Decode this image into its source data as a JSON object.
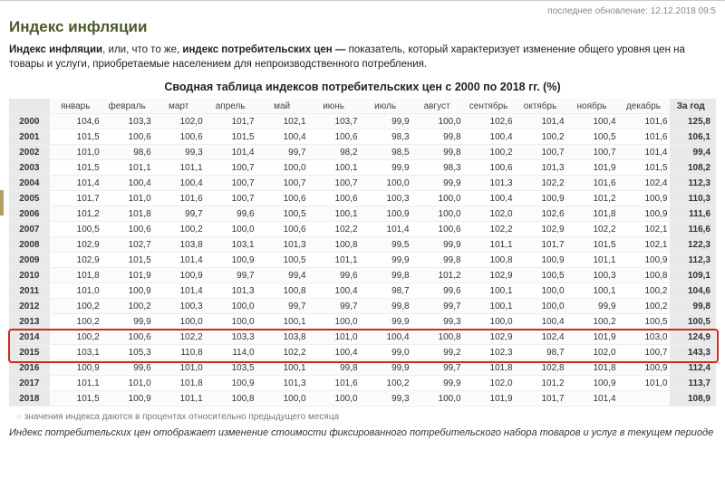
{
  "updated_prefix": "последнее обновление:",
  "updated": "12.12.2018 09:5",
  "title": "Индекс инфляции",
  "lead_a": "Индекс инфляции",
  "lead_b": ", или, что то же, ",
  "lead_c": "индекс потребительских цен —",
  "lead_d": " показатель, который характеризует изменение общего уровня цен на товары и услуги, приобретаемые населением для непроизводственного потребления.",
  "table_title": "Сводная таблица индексов потребительских цен с 2000 по 2018 гг. (%)",
  "months": [
    "январь",
    "февраль",
    "март",
    "апрель",
    "май",
    "июнь",
    "июль",
    "август",
    "сентябрь",
    "октябрь",
    "ноябрь",
    "декабрь"
  ],
  "year_total_head": "За год",
  "highlight_years": [
    "2014",
    "2015"
  ],
  "rows": [
    {
      "y": "2000",
      "v": [
        "104,6",
        "103,3",
        "102,0",
        "101,7",
        "102,1",
        "103,7",
        "99,9",
        "100,0",
        "102,6",
        "101,4",
        "100,4",
        "101,6"
      ],
      "t": "125,8"
    },
    {
      "y": "2001",
      "v": [
        "101,5",
        "100,6",
        "100,6",
        "101,5",
        "100,4",
        "100,6",
        "98,3",
        "99,8",
        "100,4",
        "100,2",
        "100,5",
        "101,6"
      ],
      "t": "106,1"
    },
    {
      "y": "2002",
      "v": [
        "101,0",
        "98,6",
        "99,3",
        "101,4",
        "99,7",
        "98,2",
        "98,5",
        "99,8",
        "100,2",
        "100,7",
        "100,7",
        "101,4"
      ],
      "t": "99,4"
    },
    {
      "y": "2003",
      "v": [
        "101,5",
        "101,1",
        "101,1",
        "100,7",
        "100,0",
        "100,1",
        "99,9",
        "98,3",
        "100,6",
        "101,3",
        "101,9",
        "101,5"
      ],
      "t": "108,2"
    },
    {
      "y": "2004",
      "v": [
        "101,4",
        "100,4",
        "100,4",
        "100,7",
        "100,7",
        "100,7",
        "100,0",
        "99,9",
        "101,3",
        "102,2",
        "101,6",
        "102,4"
      ],
      "t": "112,3"
    },
    {
      "y": "2005",
      "v": [
        "101,7",
        "101,0",
        "101,6",
        "100,7",
        "100,6",
        "100,6",
        "100,3",
        "100,0",
        "100,4",
        "100,9",
        "101,2",
        "100,9"
      ],
      "t": "110,3"
    },
    {
      "y": "2006",
      "v": [
        "101,2",
        "101,8",
        "99,7",
        "99,6",
        "100,5",
        "100,1",
        "100,9",
        "100,0",
        "102,0",
        "102,6",
        "101,8",
        "100,9"
      ],
      "t": "111,6"
    },
    {
      "y": "2007",
      "v": [
        "100,5",
        "100,6",
        "100,2",
        "100,0",
        "100,6",
        "102,2",
        "101,4",
        "100,6",
        "102,2",
        "102,9",
        "102,2",
        "102,1"
      ],
      "t": "116,6"
    },
    {
      "y": "2008",
      "v": [
        "102,9",
        "102,7",
        "103,8",
        "103,1",
        "101,3",
        "100,8",
        "99,5",
        "99,9",
        "101,1",
        "101,7",
        "101,5",
        "102,1"
      ],
      "t": "122,3"
    },
    {
      "y": "2009",
      "v": [
        "102,9",
        "101,5",
        "101,4",
        "100,9",
        "100,5",
        "101,1",
        "99,9",
        "99,8",
        "100,8",
        "100,9",
        "101,1",
        "100,9"
      ],
      "t": "112,3"
    },
    {
      "y": "2010",
      "v": [
        "101,8",
        "101,9",
        "100,9",
        "99,7",
        "99,4",
        "99,6",
        "99,8",
        "101,2",
        "102,9",
        "100,5",
        "100,3",
        "100,8"
      ],
      "t": "109,1"
    },
    {
      "y": "2011",
      "v": [
        "101,0",
        "100,9",
        "101,4",
        "101,3",
        "100,8",
        "100,4",
        "98,7",
        "99,6",
        "100,1",
        "100,0",
        "100,1",
        "100,2"
      ],
      "t": "104,6"
    },
    {
      "y": "2012",
      "v": [
        "100,2",
        "100,2",
        "100,3",
        "100,0",
        "99,7",
        "99,7",
        "99,8",
        "99,7",
        "100,1",
        "100,0",
        "99,9",
        "100,2"
      ],
      "t": "99,8"
    },
    {
      "y": "2013",
      "v": [
        "100,2",
        "99,9",
        "100,0",
        "100,0",
        "100,1",
        "100,0",
        "99,9",
        "99,3",
        "100,0",
        "100,4",
        "100,2",
        "100,5"
      ],
      "t": "100,5"
    },
    {
      "y": "2014",
      "v": [
        "100,2",
        "100,6",
        "102,2",
        "103,3",
        "103,8",
        "101,0",
        "100,4",
        "100,8",
        "102,9",
        "102,4",
        "101,9",
        "103,0"
      ],
      "t": "124,9"
    },
    {
      "y": "2015",
      "v": [
        "103,1",
        "105,3",
        "110,8",
        "114,0",
        "102,2",
        "100,4",
        "99,0",
        "99,2",
        "102,3",
        "98,7",
        "102,0",
        "100,7"
      ],
      "t": "143,3"
    },
    {
      "y": "2016",
      "v": [
        "100,9",
        "99,6",
        "101,0",
        "103,5",
        "100,1",
        "99,8",
        "99,9",
        "99,7",
        "101,8",
        "102,8",
        "101,8",
        "100,9"
      ],
      "t": "112,4"
    },
    {
      "y": "2017",
      "v": [
        "101,1",
        "101,0",
        "101,8",
        "100,9",
        "101,3",
        "101,6",
        "100,2",
        "99,9",
        "102,0",
        "101,2",
        "100,9",
        "101,0"
      ],
      "t": "113,7"
    },
    {
      "y": "2018",
      "v": [
        "101,5",
        "100,9",
        "101,1",
        "100,8",
        "100,0",
        "100,0",
        "99,3",
        "100,0",
        "101,9",
        "101,7",
        "101,4",
        ""
      ],
      "t": "108,9"
    }
  ],
  "note": "значения индекса даются в процентах относительно предыдущего месяца",
  "foot_a": "Индекс потребительских цен",
  "foot_b": " отображает изменение стоимости фиксированного потребительского набора товаров и услуг в текущем периоде"
}
